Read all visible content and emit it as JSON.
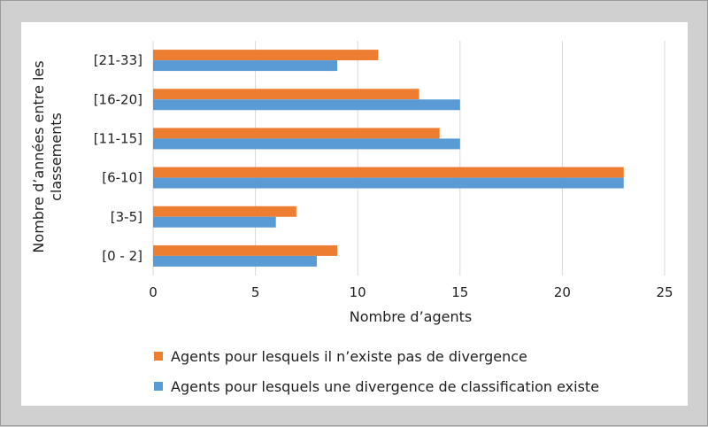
{
  "chart_data": {
    "type": "bar",
    "orientation": "horizontal",
    "categories": [
      "[21-33]",
      "[16-20]",
      "[11-15]",
      "[6-10]",
      "[3-5]",
      "[0 - 2]"
    ],
    "series": [
      {
        "name": "Agents pour lesquels il n’existe pas de divergence",
        "color": "#ed7d31",
        "values": [
          11,
          13,
          14,
          23,
          7,
          9
        ]
      },
      {
        "name": "Agents pour lesquels une divergence de classification existe",
        "color": "#5b9bd5",
        "values": [
          9,
          15,
          15,
          23,
          6,
          8
        ]
      }
    ],
    "xlabel": "Nombre d’agents",
    "ylabel": [
      "Nombre d’années entre les",
      "classements"
    ],
    "xlim": [
      0,
      25
    ],
    "xticks": [
      0,
      5,
      10,
      15,
      20,
      25
    ],
    "grid": true,
    "legend_position": "bottom"
  }
}
